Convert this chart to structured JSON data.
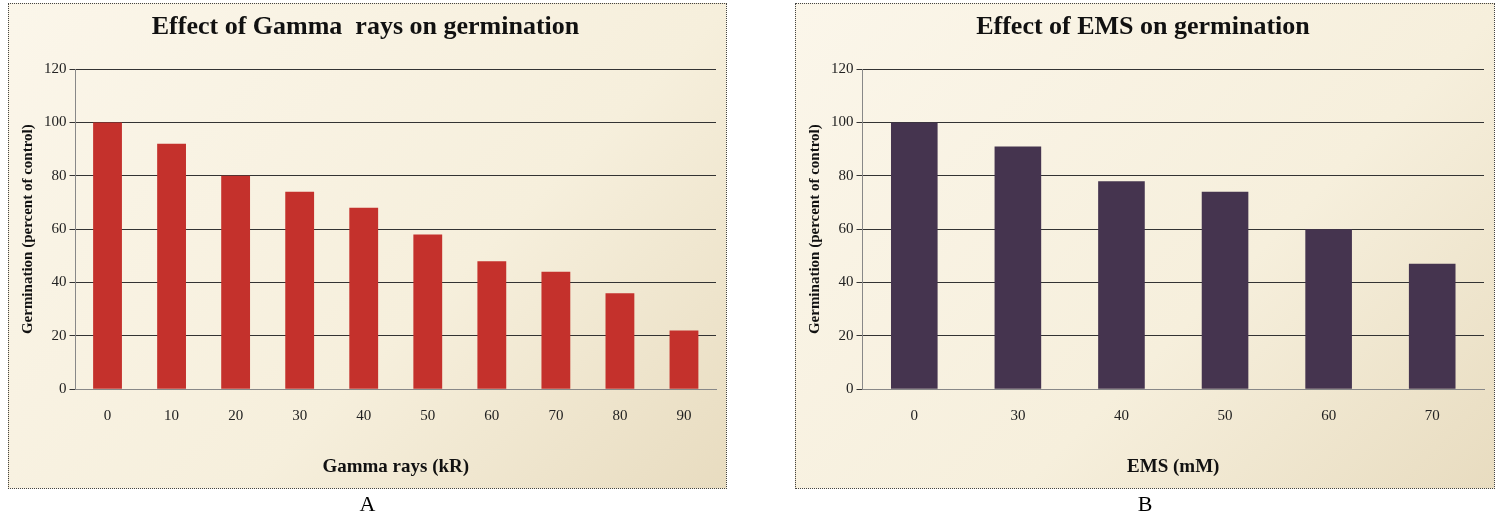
{
  "chart_data": [
    {
      "type": "bar",
      "title": "Effect of Gamma  rays on germination",
      "xlabel": "Gamma rays (kR)",
      "ylabel": "Germination (percent of control)",
      "categories": [
        "0",
        "10",
        "20",
        "30",
        "40",
        "50",
        "60",
        "70",
        "80",
        "90"
      ],
      "values": [
        100,
        92,
        80,
        74,
        68,
        58,
        48,
        44,
        36,
        22
      ],
      "color": "#c4312c",
      "ylim": [
        0,
        120
      ],
      "yticks": [
        0,
        20,
        40,
        60,
        80,
        100,
        120
      ],
      "grid": "y",
      "annotations": [
        "A"
      ]
    },
    {
      "type": "bar",
      "title": "Effect of EMS on germination",
      "xlabel": "EMS (mM)",
      "ylabel": "Germination (percent of control)",
      "categories": [
        "0",
        "30",
        "40",
        "50",
        "60",
        "70"
      ],
      "values": [
        100,
        91,
        78,
        74,
        60,
        47
      ],
      "color": "#45344f",
      "ylim": [
        0,
        120
      ],
      "yticks": [
        0,
        20,
        40,
        60,
        80,
        100,
        120
      ],
      "grid": "y",
      "annotations": [
        "B"
      ]
    }
  ]
}
